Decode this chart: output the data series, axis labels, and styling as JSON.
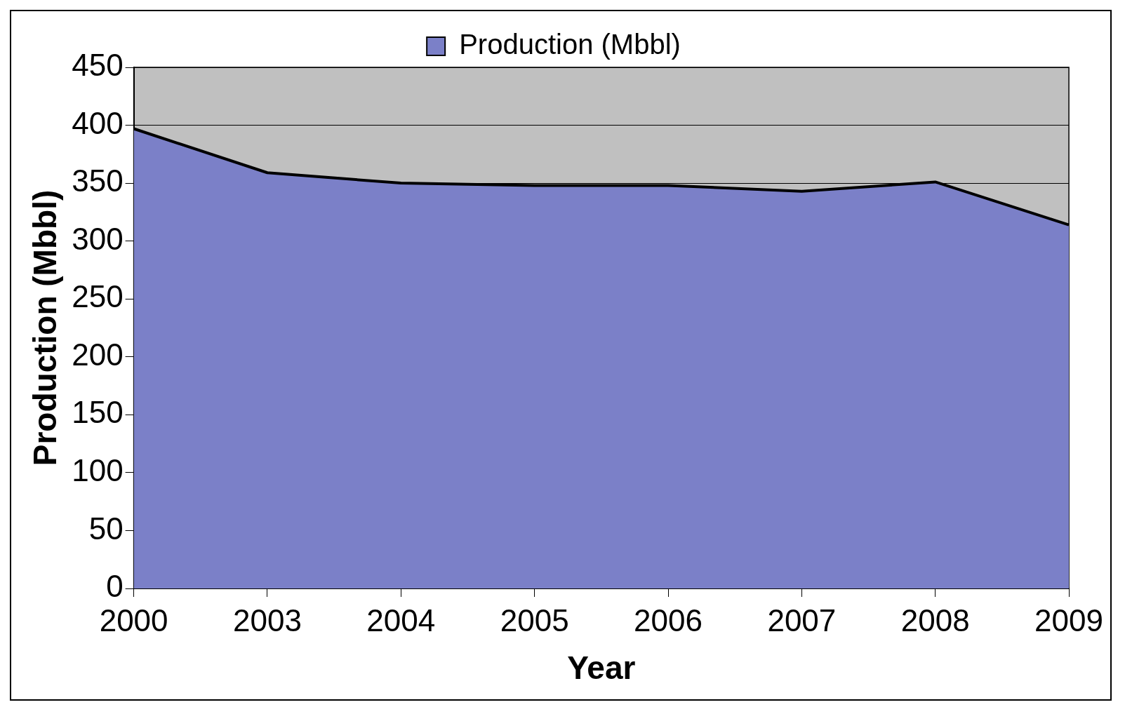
{
  "chart_data": {
    "type": "area",
    "xlabel": "Year",
    "ylabel": "Production (Mbbl)",
    "categories": [
      "2000",
      "2003",
      "2004",
      "2005",
      "2006",
      "2007",
      "2008",
      "2009"
    ],
    "series": [
      {
        "name": "Production (Mbbl)",
        "color": "#7b80c8",
        "values": [
          397,
          359,
          350,
          348,
          348,
          343,
          351,
          314
        ]
      }
    ],
    "ylim": [
      0,
      450
    ],
    "yticks": [
      0,
      50,
      100,
      150,
      200,
      250,
      300,
      350,
      400,
      450
    ],
    "grid": "y",
    "legend": "top"
  }
}
